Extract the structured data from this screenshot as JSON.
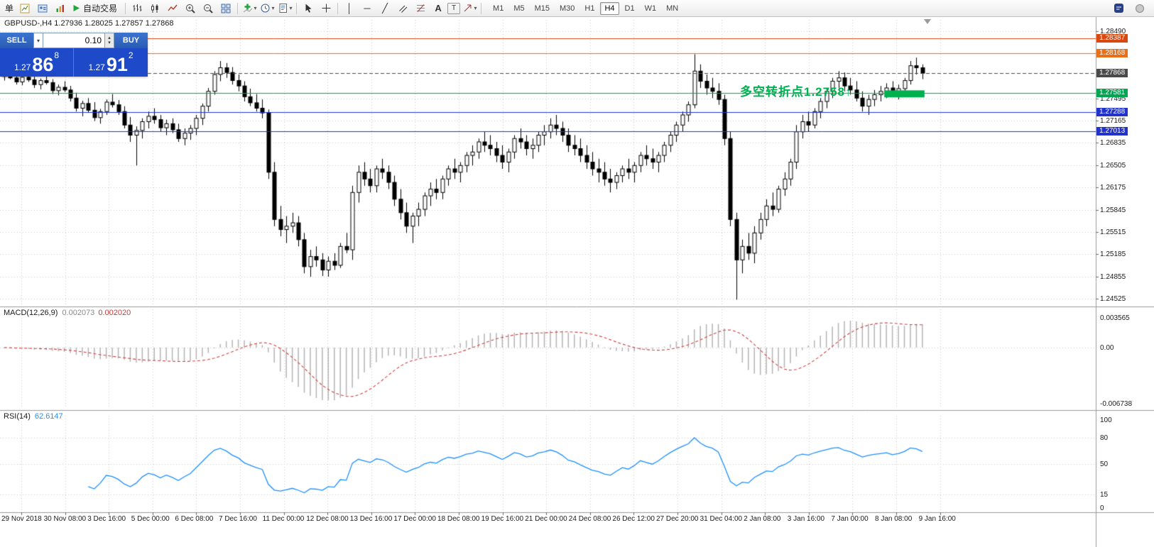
{
  "toolbar": {
    "new_order_label": "单",
    "autotrade_label": "自动交易",
    "icons": {
      "dropdown": "▾",
      "vline_glyph": "│",
      "hline_glyph": "─",
      "trendline_glyph": "╱",
      "text_glyph": "A",
      "label_glyph": "T",
      "crosshair_glyph": "+"
    },
    "timeframes": [
      "M1",
      "M5",
      "M15",
      "M30",
      "H1",
      "H4",
      "D1",
      "W1",
      "MN"
    ],
    "active_timeframe": "H4"
  },
  "trade_panel": {
    "sell_label": "SELL",
    "buy_label": "BUY",
    "volume": "0.10",
    "spinner_up": "▴",
    "spinner_down": "▾",
    "sell_price": {
      "prefix": "1.27",
      "big": "86",
      "sup": "8"
    },
    "buy_price": {
      "prefix": "1.27",
      "big": "91",
      "sup": "2"
    }
  },
  "chart_header": "GBPUSD-,H4 1.27936 1.28025 1.27857 1.27868",
  "chart_data": {
    "type": "candlestick",
    "symbol": "GBPUSD-",
    "timeframe": "H4",
    "ohlc": {
      "open": "1.27936",
      "high": "1.28025",
      "low": "1.27857",
      "close": "1.27868"
    },
    "ylim": [
      1.2443,
      1.2866
    ],
    "price_axis_labels": [
      "1.28490",
      "1.27495",
      "1.27165",
      "1.26835",
      "1.26505",
      "1.26175",
      "1.25845",
      "1.25515",
      "1.25185",
      "1.24855",
      "1.24525"
    ],
    "hlines": [
      {
        "price": 1.28387,
        "label": "1.28387",
        "color": "#d9480f",
        "style": "solid"
      },
      {
        "price": 1.28168,
        "label": "1.28168",
        "color": "#e8701a",
        "style": "solid"
      },
      {
        "price": 1.27868,
        "label": "1.27868",
        "color": "#4a4a4a",
        "style": "dashed"
      },
      {
        "price": 1.27581,
        "label": "1.27581",
        "color": "#00a651",
        "style": "solid"
      },
      {
        "price": 1.27288,
        "label": "1.27288",
        "color": "#2233cc",
        "style": "solid"
      },
      {
        "price": 1.27013,
        "label": "1.27013",
        "color": "#2233cc",
        "style": "solid"
      }
    ],
    "annotation": {
      "text": "多空转折点1.2758↑",
      "color": "#00b050"
    },
    "highlight_rect": {
      "price_top": 1.27615,
      "price_bottom": 1.2751,
      "start_index": 147,
      "end_index": 153,
      "color": "#00b050"
    },
    "time_labels": [
      "29 Nov 2018",
      "30 Nov 08:00",
      "3 Dec 16:00",
      "5 Dec 00:00",
      "6 Dec 08:00",
      "7 Dec 16:00",
      "11 Dec 00:00",
      "12 Dec 08:00",
      "13 Dec 16:00",
      "17 Dec 00:00",
      "18 Dec 08:00",
      "19 Dec 16:00",
      "21 Dec 00:00",
      "24 Dec 08:00",
      "26 Dec 12:00",
      "27 Dec 20:00",
      "31 Dec 04:00",
      "2 Jan 08:00",
      "3 Jan 16:00",
      "7 Jan 00:00",
      "8 Jan 08:00",
      "9 Jan 16:00"
    ],
    "colors": {
      "up_body": "#ffffff",
      "down_body": "#000000",
      "outline": "#000000",
      "grid": "#c9c9c9"
    },
    "candles": [
      [
        1.2782,
        1.279,
        1.2776,
        1.2785
      ],
      [
        1.2785,
        1.2791,
        1.2778,
        1.278
      ],
      [
        1.278,
        1.2786,
        1.277,
        1.2774
      ],
      [
        1.2774,
        1.2783,
        1.2769,
        1.2781
      ],
      [
        1.2781,
        1.2787,
        1.2774,
        1.2777
      ],
      [
        1.2777,
        1.2782,
        1.2765,
        1.277
      ],
      [
        1.277,
        1.2779,
        1.2763,
        1.2776
      ],
      [
        1.2776,
        1.2784,
        1.277,
        1.2773
      ],
      [
        1.2773,
        1.2778,
        1.2756,
        1.2761
      ],
      [
        1.2761,
        1.277,
        1.2754,
        1.2766
      ],
      [
        1.2766,
        1.2775,
        1.2759,
        1.2762
      ],
      [
        1.2762,
        1.2768,
        1.2745,
        1.275
      ],
      [
        1.275,
        1.2758,
        1.273,
        1.2735
      ],
      [
        1.2735,
        1.2746,
        1.2723,
        1.2742
      ],
      [
        1.2742,
        1.275,
        1.2728,
        1.2732
      ],
      [
        1.2732,
        1.2744,
        1.2716,
        1.2721
      ],
      [
        1.2721,
        1.2734,
        1.2712,
        1.273
      ],
      [
        1.273,
        1.2748,
        1.2725,
        1.2744
      ],
      [
        1.2744,
        1.2756,
        1.2736,
        1.274
      ],
      [
        1.274,
        1.2747,
        1.2725,
        1.273
      ],
      [
        1.273,
        1.2738,
        1.2705,
        1.271
      ],
      [
        1.271,
        1.2722,
        1.2685,
        1.2695
      ],
      [
        1.2695,
        1.2708,
        1.265,
        1.2702
      ],
      [
        1.2702,
        1.272,
        1.269,
        1.2715
      ],
      [
        1.2715,
        1.273,
        1.2705,
        1.2723
      ],
      [
        1.2723,
        1.2735,
        1.2712,
        1.2718
      ],
      [
        1.2718,
        1.2725,
        1.27,
        1.2706
      ],
      [
        1.2706,
        1.2718,
        1.2695,
        1.2712
      ],
      [
        1.2712,
        1.272,
        1.2698,
        1.2703
      ],
      [
        1.2703,
        1.2712,
        1.2685,
        1.269
      ],
      [
        1.269,
        1.2705,
        1.268,
        1.2698
      ],
      [
        1.2698,
        1.271,
        1.2688,
        1.2705
      ],
      [
        1.2705,
        1.2725,
        1.2695,
        1.272
      ],
      [
        1.272,
        1.2742,
        1.271,
        1.2738
      ],
      [
        1.2738,
        1.2765,
        1.273,
        1.276
      ],
      [
        1.276,
        1.279,
        1.2755,
        1.2785
      ],
      [
        1.2785,
        1.2805,
        1.2775,
        1.2795
      ],
      [
        1.2795,
        1.2802,
        1.278,
        1.2788
      ],
      [
        1.2788,
        1.2796,
        1.277,
        1.2776
      ],
      [
        1.2776,
        1.2785,
        1.276,
        1.2768
      ],
      [
        1.2768,
        1.2775,
        1.2745,
        1.2752
      ],
      [
        1.2752,
        1.2764,
        1.2738,
        1.2743
      ],
      [
        1.2743,
        1.2756,
        1.273,
        1.2735
      ],
      [
        1.2735,
        1.2748,
        1.272,
        1.2728
      ],
      [
        1.2728,
        1.2733,
        1.263,
        1.264
      ],
      [
        1.264,
        1.2655,
        1.256,
        1.257
      ],
      [
        1.257,
        1.259,
        1.2545,
        1.2555
      ],
      [
        1.2555,
        1.2575,
        1.2535,
        1.256
      ],
      [
        1.256,
        1.258,
        1.255,
        1.2565
      ],
      [
        1.2565,
        1.2575,
        1.253,
        1.254
      ],
      [
        1.254,
        1.255,
        1.249,
        1.25
      ],
      [
        1.25,
        1.2525,
        1.2485,
        1.2515
      ],
      [
        1.2515,
        1.253,
        1.25,
        1.251
      ],
      [
        1.251,
        1.252,
        1.2486,
        1.2495
      ],
      [
        1.2495,
        1.2515,
        1.2485,
        1.2508
      ],
      [
        1.2508,
        1.252,
        1.2495,
        1.2502
      ],
      [
        1.2502,
        1.2535,
        1.2498,
        1.253
      ],
      [
        1.253,
        1.255,
        1.252,
        1.2525
      ],
      [
        1.2525,
        1.262,
        1.251,
        1.261
      ],
      [
        1.261,
        1.265,
        1.2595,
        1.264
      ],
      [
        1.264,
        1.2655,
        1.262,
        1.263
      ],
      [
        1.263,
        1.2645,
        1.261,
        1.262
      ],
      [
        1.262,
        1.265,
        1.261,
        1.2645
      ],
      [
        1.2645,
        1.266,
        1.263,
        1.264
      ],
      [
        1.264,
        1.265,
        1.2615,
        1.2625
      ],
      [
        1.2625,
        1.2635,
        1.259,
        1.26
      ],
      [
        1.26,
        1.2615,
        1.257,
        1.258
      ],
      [
        1.258,
        1.2595,
        1.255,
        1.256
      ],
      [
        1.256,
        1.258,
        1.2535,
        1.2575
      ],
      [
        1.2575,
        1.2595,
        1.256,
        1.2585
      ],
      [
        1.2585,
        1.261,
        1.2575,
        1.2605
      ],
      [
        1.2605,
        1.2625,
        1.259,
        1.2615
      ],
      [
        1.2615,
        1.263,
        1.26,
        1.261
      ],
      [
        1.261,
        1.2635,
        1.26,
        1.263
      ],
      [
        1.263,
        1.265,
        1.262,
        1.2645
      ],
      [
        1.2645,
        1.266,
        1.263,
        1.264
      ],
      [
        1.264,
        1.2655,
        1.2625,
        1.265
      ],
      [
        1.265,
        1.267,
        1.264,
        1.2665
      ],
      [
        1.2665,
        1.268,
        1.265,
        1.267
      ],
      [
        1.267,
        1.269,
        1.266,
        1.2685
      ],
      [
        1.2685,
        1.27,
        1.267,
        1.268
      ],
      [
        1.268,
        1.2695,
        1.2665,
        1.2675
      ],
      [
        1.2675,
        1.2685,
        1.2655,
        1.2665
      ],
      [
        1.2665,
        1.268,
        1.2645,
        1.2655
      ],
      [
        1.2655,
        1.2675,
        1.264,
        1.267
      ],
      [
        1.267,
        1.2695,
        1.266,
        1.269
      ],
      [
        1.269,
        1.2705,
        1.2675,
        1.2685
      ],
      [
        1.2685,
        1.2695,
        1.2665,
        1.2675
      ],
      [
        1.2675,
        1.269,
        1.266,
        1.268
      ],
      [
        1.268,
        1.27,
        1.267,
        1.2695
      ],
      [
        1.2695,
        1.271,
        1.268,
        1.27
      ],
      [
        1.27,
        1.272,
        1.269,
        1.271
      ],
      [
        1.271,
        1.2725,
        1.2695,
        1.2705
      ],
      [
        1.2705,
        1.2715,
        1.2685,
        1.2695
      ],
      [
        1.2695,
        1.2705,
        1.267,
        1.268
      ],
      [
        1.268,
        1.2695,
        1.2665,
        1.2675
      ],
      [
        1.2675,
        1.269,
        1.2655,
        1.2665
      ],
      [
        1.2665,
        1.268,
        1.2645,
        1.2655
      ],
      [
        1.2655,
        1.267,
        1.2635,
        1.2645
      ],
      [
        1.2645,
        1.266,
        1.2625,
        1.264
      ],
      [
        1.264,
        1.2655,
        1.262,
        1.263
      ],
      [
        1.263,
        1.2645,
        1.261,
        1.2625
      ],
      [
        1.2625,
        1.264,
        1.2615,
        1.2635
      ],
      [
        1.2635,
        1.265,
        1.2625,
        1.2645
      ],
      [
        1.2645,
        1.266,
        1.263,
        1.264
      ],
      [
        1.264,
        1.2655,
        1.2625,
        1.265
      ],
      [
        1.265,
        1.267,
        1.264,
        1.2665
      ],
      [
        1.2665,
        1.268,
        1.265,
        1.266
      ],
      [
        1.266,
        1.2675,
        1.2645,
        1.2655
      ],
      [
        1.2655,
        1.267,
        1.264,
        1.2665
      ],
      [
        1.2665,
        1.2685,
        1.2655,
        1.268
      ],
      [
        1.268,
        1.27,
        1.267,
        1.2695
      ],
      [
        1.2695,
        1.2715,
        1.2685,
        1.271
      ],
      [
        1.271,
        1.273,
        1.27,
        1.2725
      ],
      [
        1.2725,
        1.2745,
        1.2715,
        1.274
      ],
      [
        1.274,
        1.2815,
        1.2735,
        1.279
      ],
      [
        1.279,
        1.28,
        1.2765,
        1.2775
      ],
      [
        1.2775,
        1.2785,
        1.2755,
        1.2765
      ],
      [
        1.2765,
        1.278,
        1.275,
        1.276
      ],
      [
        1.276,
        1.2772,
        1.274,
        1.2748
      ],
      [
        1.2748,
        1.2755,
        1.268,
        1.269
      ],
      [
        1.269,
        1.27,
        1.256,
        1.257
      ],
      [
        1.257,
        1.258,
        1.2451,
        1.251
      ],
      [
        1.251,
        1.254,
        1.249,
        1.253
      ],
      [
        1.253,
        1.255,
        1.251,
        1.252
      ],
      [
        1.252,
        1.256,
        1.2505,
        1.255
      ],
      [
        1.255,
        1.258,
        1.254,
        1.257
      ],
      [
        1.257,
        1.26,
        1.256,
        1.259
      ],
      [
        1.259,
        1.261,
        1.2575,
        1.2585
      ],
      [
        1.2585,
        1.262,
        1.258,
        1.2615
      ],
      [
        1.2615,
        1.264,
        1.2605,
        1.263
      ],
      [
        1.263,
        1.266,
        1.262,
        1.2655
      ],
      [
        1.2655,
        1.271,
        1.2645,
        1.27
      ],
      [
        1.27,
        1.2725,
        1.269,
        1.2715
      ],
      [
        1.2715,
        1.273,
        1.27,
        1.271
      ],
      [
        1.271,
        1.2735,
        1.2705,
        1.273
      ],
      [
        1.273,
        1.275,
        1.272,
        1.2745
      ],
      [
        1.2745,
        1.2765,
        1.2735,
        1.276
      ],
      [
        1.276,
        1.278,
        1.275,
        1.2775
      ],
      [
        1.2775,
        1.279,
        1.2765,
        1.278
      ],
      [
        1.278,
        1.2788,
        1.276,
        1.2768
      ],
      [
        1.2768,
        1.278,
        1.2755,
        1.2762
      ],
      [
        1.2762,
        1.2775,
        1.2745,
        1.275
      ],
      [
        1.275,
        1.276,
        1.273,
        1.2738
      ],
      [
        1.2738,
        1.2755,
        1.2725,
        1.2748
      ],
      [
        1.2748,
        1.2762,
        1.2738,
        1.2755
      ],
      [
        1.2755,
        1.2768,
        1.2745,
        1.276
      ],
      [
        1.276,
        1.2772,
        1.275,
        1.2765
      ],
      [
        1.2765,
        1.2775,
        1.2752,
        1.2758
      ],
      [
        1.2758,
        1.277,
        1.2748,
        1.2764
      ],
      [
        1.2764,
        1.278,
        1.2756,
        1.2776
      ],
      [
        1.2776,
        1.2805,
        1.277,
        1.2798
      ],
      [
        1.2798,
        1.281,
        1.2785,
        1.2795
      ],
      [
        1.2795,
        1.28,
        1.2778,
        1.2787
      ]
    ],
    "macd": {
      "label": "MACD(12,26,9)",
      "value1": "0.002073",
      "value2": "0.002020",
      "fast": 12,
      "slow": 26,
      "signal": 9,
      "axis_labels": [
        "0.003565",
        "0.00",
        "-0.006738"
      ],
      "axis_values": [
        0.003565,
        0,
        -0.006738
      ],
      "histogram_color": "#b4b4b4",
      "signal_color": "#d23f3f"
    },
    "rsi": {
      "label": "RSI(14)",
      "value": "62.6147",
      "period": 14,
      "levels": [
        80,
        50,
        15
      ],
      "axis_labels": [
        "100",
        "80",
        "50",
        "15",
        "0"
      ],
      "axis_values": [
        100,
        80,
        50,
        15,
        0
      ],
      "line_color": "#1e90ff"
    }
  }
}
